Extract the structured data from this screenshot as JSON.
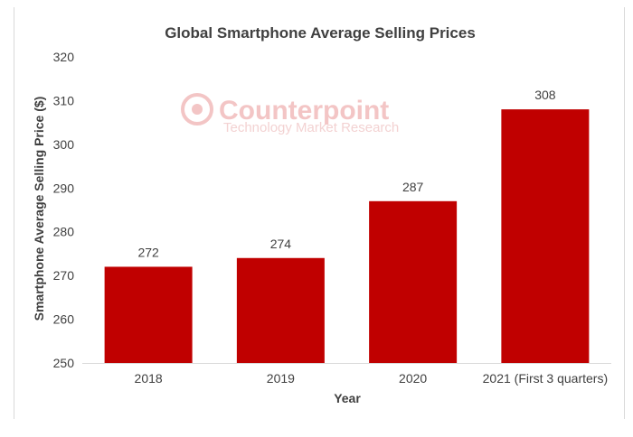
{
  "chart_data": {
    "type": "bar",
    "title": "Global Smartphone Average Selling Prices",
    "xlabel": "Year",
    "ylabel": "Smartphone Average Selling Price ($)",
    "categories": [
      "2018",
      "2019",
      "2020",
      "2021 (First 3 quarters)"
    ],
    "values": [
      272,
      274,
      287,
      308
    ],
    "data_labels": [
      "272",
      "274",
      "287",
      "308"
    ],
    "ylim": [
      250,
      320
    ],
    "yticks": [
      "250",
      "260",
      "270",
      "280",
      "290",
      "300",
      "310",
      "320"
    ],
    "grid": false,
    "bar_color": "#c00000",
    "legend": "none"
  },
  "watermark": {
    "name": "Counterpoint",
    "tagline": "Technology Market Research",
    "icon": "counterpoint-logo-icon"
  }
}
